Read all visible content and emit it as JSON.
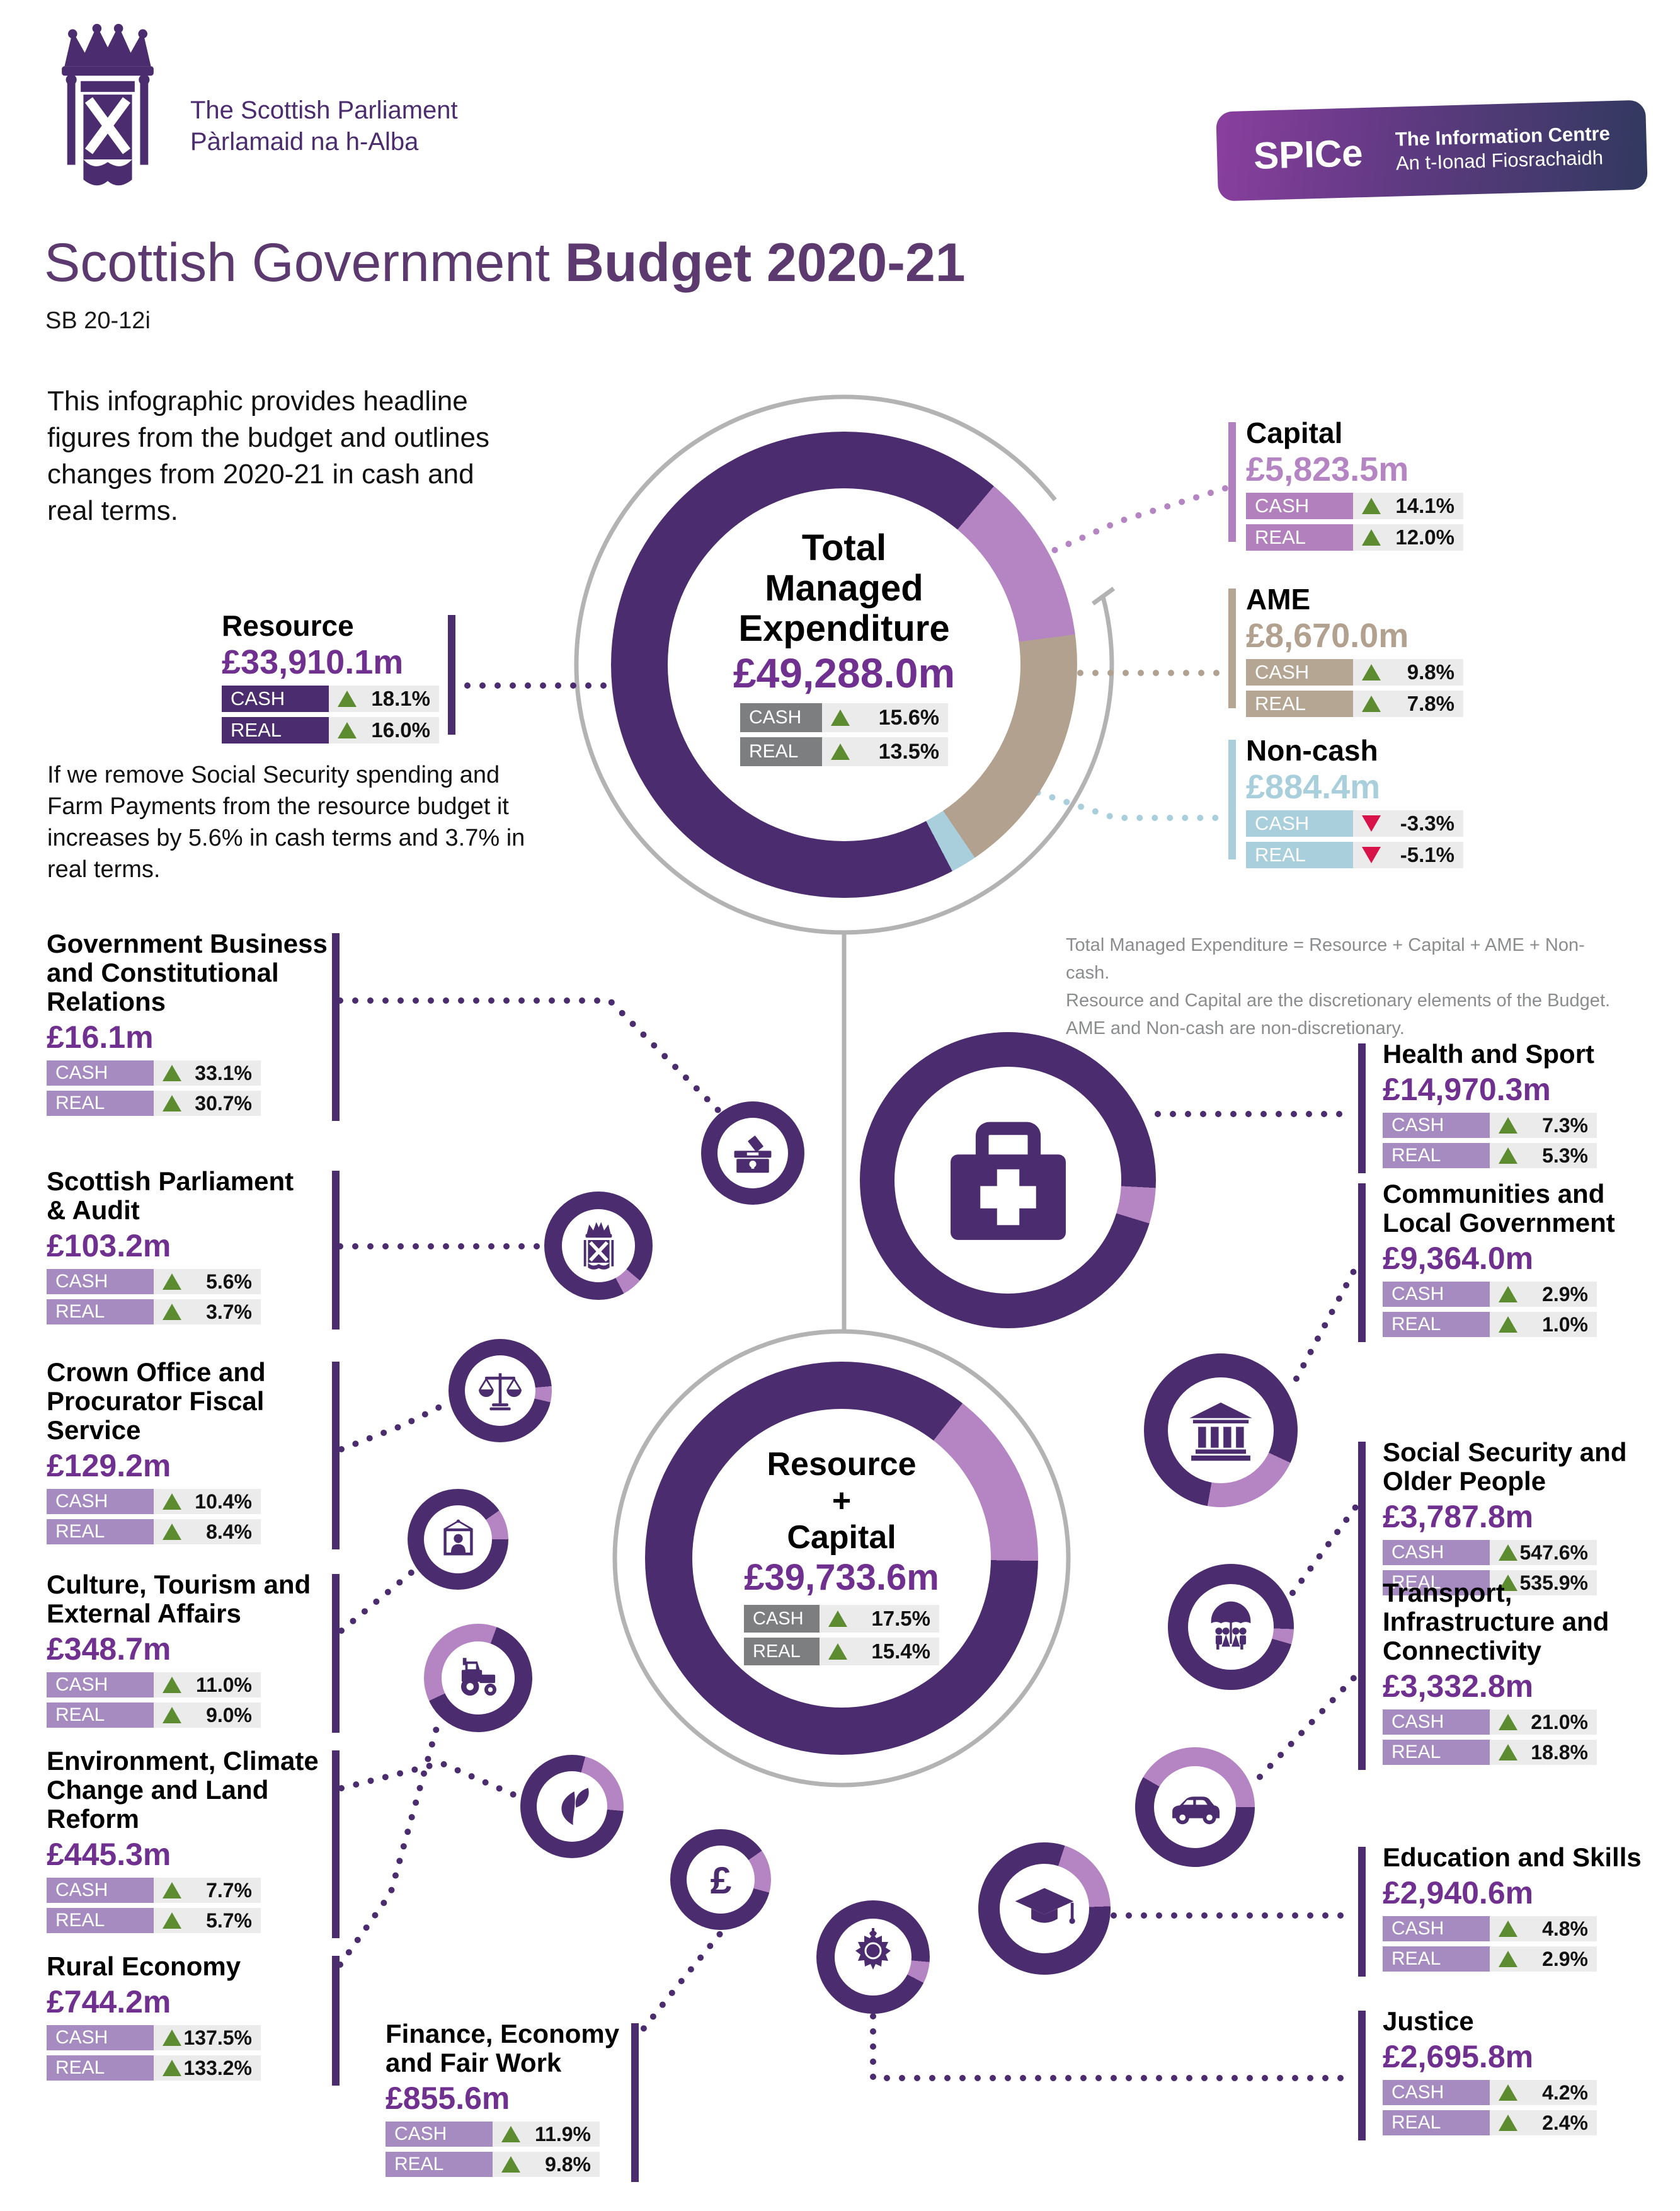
{
  "header": {
    "brand_line1": "The Scottish Parliament",
    "brand_line2": "Pàrlamaid na h-Alba",
    "spice": {
      "acronym": "SPICe",
      "line1": "The Information Centre",
      "line2": "An t-Ionad Fiosrachaidh"
    },
    "title_light": "Scottish Government ",
    "title_bold": "Budget 2020-21",
    "ref": "SB 20-12i"
  },
  "intro": "This infographic provides headline figures from the budget and outlines changes from 2020-21 in cash and real terms.",
  "resource_note": "If we remove Social Security spending and Farm Payments from the resource budget it increases by 5.6% in cash terms and 3.7% in real terms.",
  "footnote": [
    "Total Managed Expenditure = Resource + Capital + AME + Non-cash.",
    "Resource and Capital are the discretionary elements of the Budget.",
    "AME and Non-cash are non-discretionary."
  ],
  "labels": {
    "cash": "CASH",
    "real": "REAL"
  },
  "tme": {
    "title_lines": [
      "Total",
      "Managed",
      "Expenditure"
    ],
    "value": "£49,288.0m",
    "cash": "15.6%",
    "cash_dir": "up",
    "real": "13.5%",
    "real_dir": "up"
  },
  "resource_capital": {
    "title_lines": [
      "Resource",
      "+",
      "Capital"
    ],
    "value": "£39,733.6m",
    "cash": "17.5%",
    "cash_dir": "up",
    "real": "15.4%",
    "real_dir": "up"
  },
  "components": [
    {
      "id": "resource",
      "name": "Resource",
      "value": "£33,910.1m",
      "cash": "18.1%",
      "cash_dir": "up",
      "real": "16.0%",
      "real_dir": "up",
      "color": "#4b2c6e",
      "value_color": "#70308f"
    },
    {
      "id": "capital",
      "name": "Capital",
      "value": "£5,823.5m",
      "cash": "14.1%",
      "cash_dir": "up",
      "real": "12.0%",
      "real_dir": "up",
      "color": "#b180bd",
      "value_color": "#b584c3"
    },
    {
      "id": "ame",
      "name": "AME",
      "value": "£8,670.0m",
      "cash": "9.8%",
      "cash_dir": "up",
      "real": "7.8%",
      "real_dir": "up",
      "color": "#b5a593",
      "value_color": "#b3a18f"
    },
    {
      "id": "noncash",
      "name": "Non-cash",
      "value": "£884.4m",
      "cash": "-3.3%",
      "cash_dir": "down",
      "real": "-5.1%",
      "real_dir": "down",
      "color": "#a8cfdb",
      "value_color": "#a8cfdb"
    }
  ],
  "portfolios": [
    {
      "id": "gov-business",
      "lines": [
        "Government Business",
        "and Constitutional",
        "Relations"
      ],
      "value": "£16.1m",
      "cash": "33.1%",
      "real": "30.7%",
      "icon": "ballot-box-icon"
    },
    {
      "id": "scottish-parliament",
      "lines": [
        "Scottish Parliament",
        "& Audit"
      ],
      "value": "£103.2m",
      "cash": "5.6%",
      "real": "3.7%",
      "icon": "parliament-crest-icon"
    },
    {
      "id": "crown-office",
      "lines": [
        "Crown Office and",
        "Procurator Fiscal",
        "Service"
      ],
      "value": "£129.2m",
      "cash": "10.4%",
      "real": "8.4%",
      "icon": "scales-icon"
    },
    {
      "id": "culture",
      "lines": [
        "Culture, Tourism and",
        "External Affairs"
      ],
      "value": "£348.7m",
      "cash": "11.0%",
      "real": "9.0%",
      "icon": "portrait-icon"
    },
    {
      "id": "environment",
      "lines": [
        "Environment, Climate",
        "Change and Land",
        "Reform"
      ],
      "value": "£445.3m",
      "cash": "7.7%",
      "real": "5.7%",
      "icon": "leaf-icon"
    },
    {
      "id": "rural-economy",
      "lines": [
        "Rural Economy"
      ],
      "value": "£744.2m",
      "cash": "137.5%",
      "real": "133.2%",
      "icon": "tractor-icon"
    },
    {
      "id": "finance",
      "lines": [
        "Finance, Economy",
        "and Fair Work"
      ],
      "value": "£855.6m",
      "cash": "11.9%",
      "real": "9.8%",
      "icon": "pound-icon"
    },
    {
      "id": "health",
      "lines": [
        "Health and Sport"
      ],
      "value": "£14,970.3m",
      "cash": "7.3%",
      "real": "5.3%",
      "icon": "medical-bag-icon"
    },
    {
      "id": "communities",
      "lines": [
        "Communities and",
        "Local Government"
      ],
      "value": "£9,364.0m",
      "cash": "2.9%",
      "real": "1.0%",
      "icon": "bank-icon"
    },
    {
      "id": "social-security",
      "lines": [
        "Social Security and",
        "Older People"
      ],
      "value": "£3,787.8m",
      "cash": "547.6%",
      "real": "535.9%",
      "icon": "umbrella-people-icon"
    },
    {
      "id": "transport",
      "lines": [
        "Transport,",
        "Infrastructure and",
        "Connectivity"
      ],
      "value": "£3,332.8m",
      "cash": "21.0%",
      "real": "18.8%",
      "icon": "car-icon"
    },
    {
      "id": "education",
      "lines": [
        "Education and Skills"
      ],
      "value": "£2,940.6m",
      "cash": "4.8%",
      "real": "2.9%",
      "icon": "graduation-cap-icon"
    },
    {
      "id": "justice",
      "lines": [
        "Justice"
      ],
      "value": "£2,695.8m",
      "cash": "4.2%",
      "real": "2.4%",
      "icon": "police-badge-icon"
    }
  ],
  "colors": {
    "purple_dark": "#4b2c6e",
    "purple_value": "#70308f",
    "purple_light": "#b584c3",
    "label_light_purple": "#a58bbf",
    "tan": "#b3a18f",
    "blue": "#a8cfdb",
    "green_up": "#5d8b30",
    "red_down": "#d8134a",
    "gray_badge": "#7c7e80",
    "gray_line": "#b3b3b3",
    "row_bg": "#ebebeb",
    "footnote_gray": "#8a8c8e",
    "title_purple": "#5c3a70"
  },
  "chart_data": [
    {
      "type": "pie",
      "title": "Total Managed Expenditure",
      "value_label": "£49,288.0m",
      "cash_change_pct": 15.6,
      "real_change_pct": 13.5,
      "segments": [
        {
          "label": "Resource",
          "value_m": 33910.1,
          "cash_change_pct": 18.1,
          "real_change_pct": 16.0,
          "color": "#4b2c6e"
        },
        {
          "label": "Capital",
          "value_m": 5823.5,
          "cash_change_pct": 14.1,
          "real_change_pct": 12.0,
          "color": "#b584c3"
        },
        {
          "label": "AME",
          "value_m": 8670.0,
          "cash_change_pct": 9.8,
          "real_change_pct": 7.8,
          "color": "#b3a18f"
        },
        {
          "label": "Non-cash",
          "value_m": 884.4,
          "cash_change_pct": -3.3,
          "real_change_pct": -5.1,
          "color": "#a8cfdb"
        }
      ]
    },
    {
      "type": "pie",
      "title": "Resource + Capital",
      "value_label": "£39,733.6m",
      "cash_change_pct": 17.5,
      "real_change_pct": 15.4,
      "segments": [
        {
          "label": "Resource",
          "value_m": 33910.1,
          "color": "#4b2c6e"
        },
        {
          "label": "Capital",
          "value_m": 5823.5,
          "color": "#b584c3"
        }
      ]
    }
  ]
}
